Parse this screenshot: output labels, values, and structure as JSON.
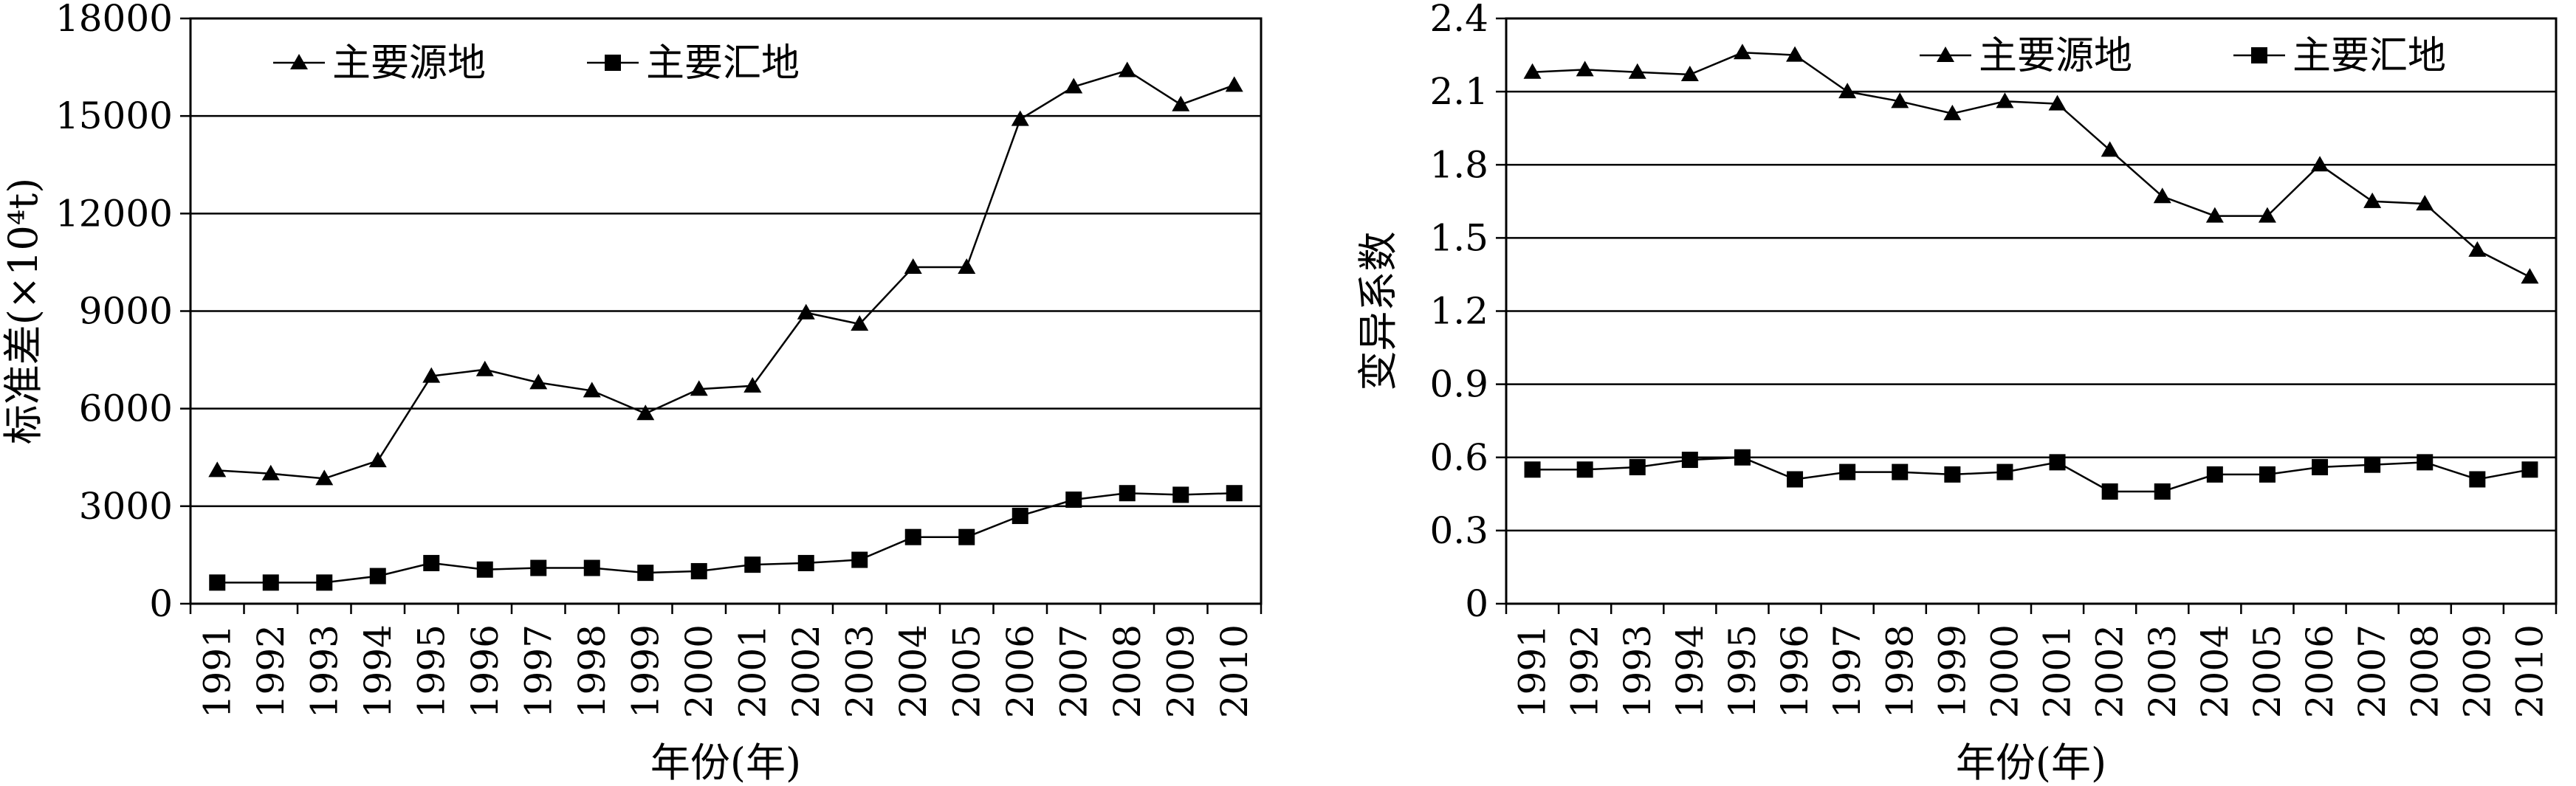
{
  "chart_data": [
    {
      "type": "line",
      "title": "",
      "xlabel": "年份(年)",
      "ylabel": "标准差(×10⁴t)",
      "categories": [
        "1991",
        "1992",
        "1993",
        "1994",
        "1995",
        "1996",
        "1997",
        "1998",
        "1999",
        "2000",
        "2001",
        "2002",
        "2003",
        "2004",
        "2005",
        "2006",
        "2007",
        "2008",
        "2009",
        "2010"
      ],
      "ylim": [
        0,
        18000
      ],
      "yticks": [
        "0",
        "3000",
        "6000",
        "9000",
        "12000",
        "15000",
        "18000"
      ],
      "grid": true,
      "legend_position": "top-left",
      "series": [
        {
          "name": "主要源地",
          "marker": "triangle",
          "values": [
            4100,
            4000,
            3850,
            4400,
            7000,
            7200,
            6800,
            6550,
            5850,
            6600,
            6700,
            8950,
            8600,
            10350,
            10350,
            14900,
            15900,
            16400,
            15350,
            15950
          ]
        },
        {
          "name": "主要汇地",
          "marker": "square",
          "values": [
            650,
            650,
            650,
            850,
            1250,
            1050,
            1100,
            1100,
            950,
            1000,
            1200,
            1250,
            1350,
            2050,
            2050,
            2700,
            3200,
            3400,
            3350,
            3400
          ]
        }
      ]
    },
    {
      "type": "line",
      "title": "",
      "xlabel": "年份(年)",
      "ylabel": "变异系数",
      "categories": [
        "1991",
        "1992",
        "1993",
        "1994",
        "1995",
        "1996",
        "1997",
        "1998",
        "1999",
        "2000",
        "2001",
        "2002",
        "2003",
        "2004",
        "2005",
        "2006",
        "2007",
        "2008",
        "2009",
        "2010"
      ],
      "ylim": [
        0,
        2.4
      ],
      "yticks": [
        "0",
        "0.3",
        "0.6",
        "0.9",
        "1.2",
        "1.5",
        "1.8",
        "2.1",
        "2.4"
      ],
      "grid": true,
      "legend_position": "top-right",
      "series": [
        {
          "name": "主要源地",
          "marker": "triangle",
          "values": [
            2.18,
            2.19,
            2.18,
            2.17,
            2.26,
            2.25,
            2.1,
            2.06,
            2.01,
            2.06,
            2.05,
            1.86,
            1.67,
            1.59,
            1.59,
            1.8,
            1.65,
            1.64,
            1.45,
            1.34
          ]
        },
        {
          "name": "主要汇地",
          "marker": "square",
          "values": [
            0.55,
            0.55,
            0.56,
            0.59,
            0.6,
            0.51,
            0.54,
            0.54,
            0.53,
            0.54,
            0.58,
            0.46,
            0.46,
            0.53,
            0.53,
            0.56,
            0.57,
            0.58,
            0.51,
            0.55
          ]
        }
      ]
    }
  ]
}
